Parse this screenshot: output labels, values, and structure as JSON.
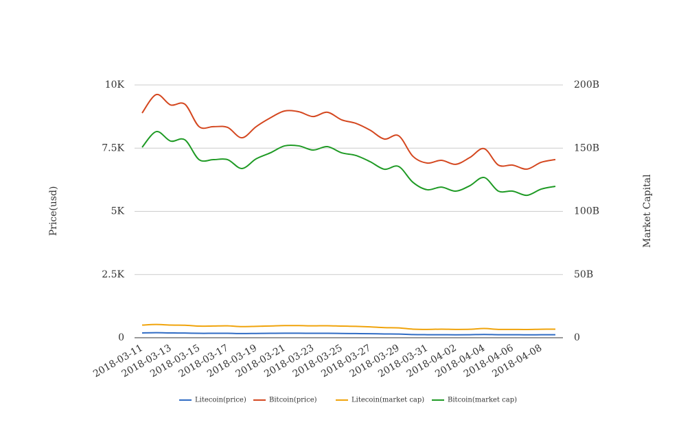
{
  "chart_data": {
    "type": "line",
    "categories": [
      "2018-03-11",
      null,
      "2018-03-13",
      null,
      "2018-03-15",
      null,
      "2018-03-17",
      null,
      "2018-03-19",
      null,
      "2018-03-21",
      null,
      "2018-03-23",
      null,
      "2018-03-25",
      null,
      "2018-03-27",
      null,
      "2018-03-29",
      null,
      "2018-03-31",
      null,
      "2018-04-02",
      null,
      "2018-04-04",
      null,
      "2018-04-06",
      null,
      "2018-04-08",
      null
    ],
    "y_label": "Price(usd)",
    "y2_label": "Market Capital",
    "ylim": [
      0,
      10000
    ],
    "yticks": [
      0,
      {
        "value": 2500,
        "label": "2.5K"
      },
      {
        "value": 5000,
        "label": "5K"
      },
      {
        "value": 7500,
        "label": "7.5K"
      },
      {
        "value": 10000,
        "label": "10K"
      }
    ],
    "y2lim": [
      0,
      200000000000
    ],
    "y2ticks": [
      0,
      {
        "value": 50000000000,
        "label": "50B"
      },
      {
        "value": 100000000000,
        "label": "100B"
      },
      {
        "value": 150000000000,
        "label": "150B"
      },
      {
        "value": 200000000000,
        "label": "200B"
      }
    ],
    "grid": true,
    "legend": "bottom",
    "series": [
      {
        "name": "Litecoin(price)",
        "color": "#2f6bc4",
        "values": [
          190,
          200,
          190,
          185,
          175,
          175,
          175,
          165,
          170,
          175,
          180,
          180,
          175,
          175,
          170,
          165,
          160,
          150,
          145,
          125,
          120,
          120,
          115,
          120,
          130,
          120,
          120,
          115,
          118,
          120
        ]
      },
      {
        "name": "Bitcoin(price)",
        "color": "#d4471f",
        "values": [
          8890,
          9620,
          9210,
          9240,
          8350,
          8350,
          8320,
          7910,
          8350,
          8700,
          8970,
          8940,
          8750,
          8920,
          8620,
          8480,
          8210,
          7860,
          7990,
          7180,
          6910,
          7020,
          6860,
          7130,
          7480,
          6830,
          6830,
          6670,
          6940,
          7050
        ]
      },
      {
        "name": "Litecoin(market cap)",
        "color": "#f0a30a",
        "axis": "y2",
        "values": [
          10000000000.0,
          10500000000.0,
          10000000000.0,
          9900000000.0,
          9200000000.0,
          9300000000.0,
          9400000000.0,
          8800000000.0,
          9000000000.0,
          9300000000.0,
          9600000000.0,
          9600000000.0,
          9400000000.0,
          9500000000.0,
          9200000000.0,
          9000000000.0,
          8600000000.0,
          8000000000.0,
          7800000000.0,
          6800000000.0,
          6600000000.0,
          6800000000.0,
          6600000000.0,
          6700000000.0,
          7300000000.0,
          6600000000.0,
          6600000000.0,
          6500000000.0,
          6700000000.0,
          6800000000.0
        ]
      },
      {
        "name": "Bitcoin(market cap)",
        "color": "#1e9a24",
        "axis": "y2",
        "values": [
          150700000000.0,
          163100000000.0,
          155600000000.0,
          156600000000.0,
          140900000000.0,
          140900000000.0,
          140900000000.0,
          133900000000.0,
          141500000000.0,
          146300000000.0,
          151800000000.0,
          151800000000.0,
          148500000000.0,
          151200000000.0,
          146300000000.0,
          144200000000.0,
          139300000000.0,
          133300000000.0,
          135500000000.0,
          123000000000.0,
          117100000000.0,
          119200000000.0,
          116000000000.0,
          120300000000.0,
          126800000000.0,
          116000000000.0,
          116000000000.0,
          112700000000.0,
          117600000000.0,
          119800000000.0
        ]
      }
    ]
  }
}
